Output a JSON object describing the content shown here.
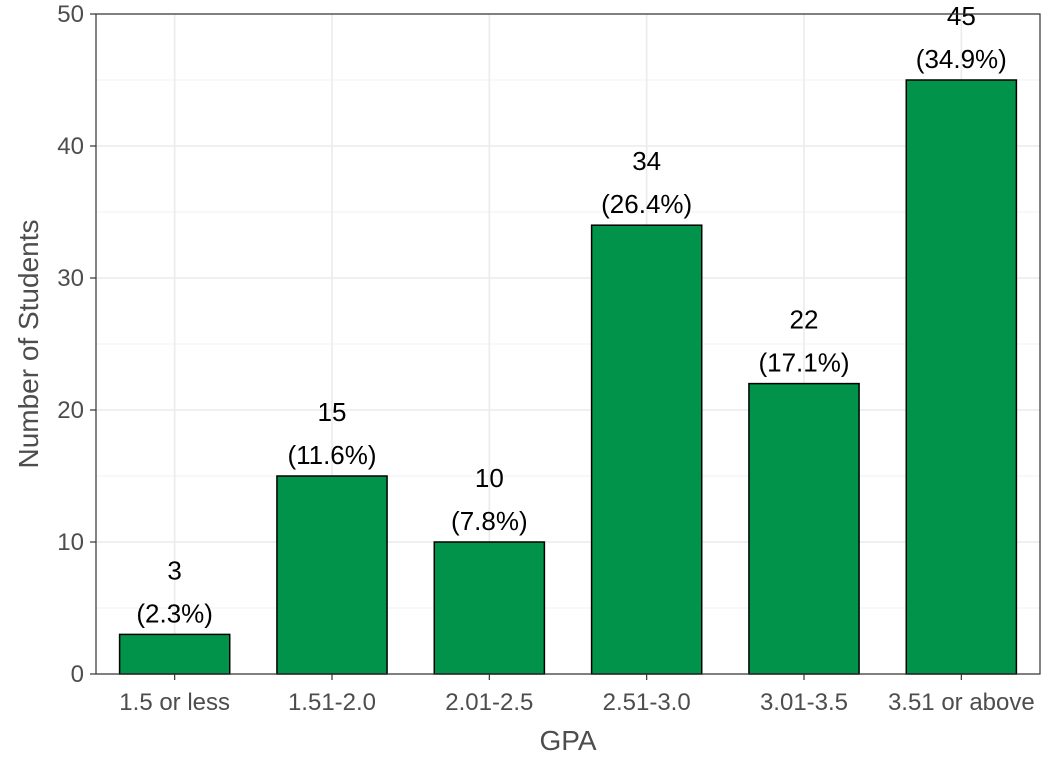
{
  "chart_data": {
    "type": "bar",
    "title": "",
    "xlabel": "GPA",
    "ylabel": "Number of Students",
    "categories": [
      "1.5 or less",
      "1.51-2.0",
      "2.01-2.5",
      "2.51-3.0",
      "3.01-3.5",
      "3.51 or above"
    ],
    "values": [
      3,
      15,
      10,
      34,
      22,
      45
    ],
    "percent_labels": [
      "(2.3%)",
      "(11.6%)",
      "(7.8%)",
      "(26.4%)",
      "(17.1%)",
      "(34.9%)"
    ],
    "count_labels": [
      "3",
      "15",
      "10",
      "34",
      "22",
      "45"
    ],
    "ylim": [
      0,
      50
    ],
    "yticks": [
      0,
      10,
      20,
      30,
      40,
      50
    ],
    "grid": true,
    "legend": "none",
    "colors": {
      "bar_fill": "#02934b",
      "bar_stroke": "#000000",
      "grid": "#ebebeb",
      "panel_border": "#333333",
      "text": "#4d4d4d"
    }
  }
}
